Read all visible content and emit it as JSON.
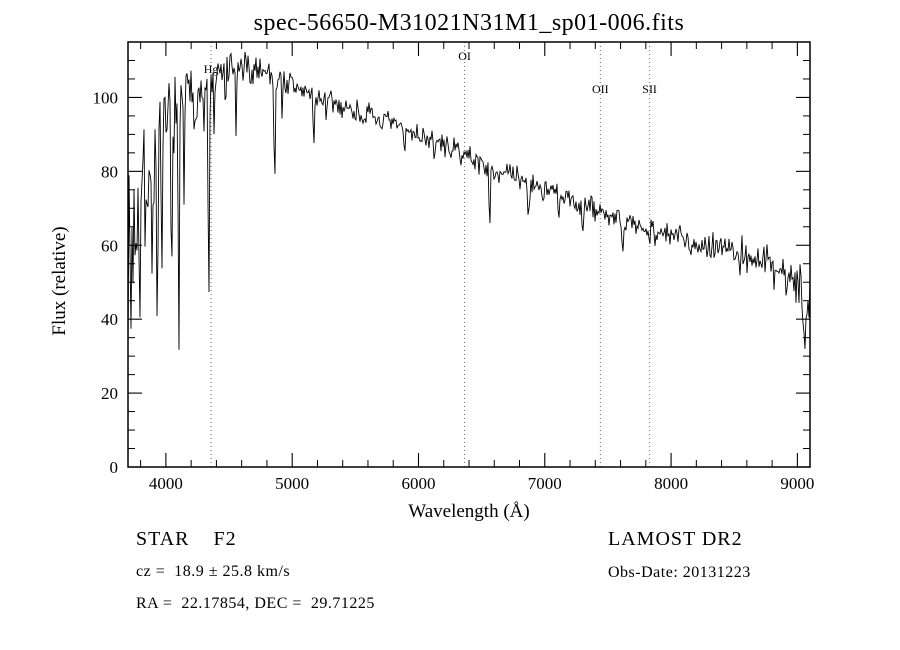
{
  "chart_data": {
    "type": "line",
    "title": "spec-56650-M31021N31M1_sp01-006.fits",
    "xlabel": "Wavelength (Å)",
    "ylabel": "Flux (relative)",
    "xlim": [
      3700,
      9100
    ],
    "ylim": [
      0,
      115
    ],
    "x_ticks": [
      4000,
      5000,
      6000,
      7000,
      8000,
      9000
    ],
    "y_ticks": [
      0,
      20,
      40,
      60,
      80,
      100
    ],
    "x_minor_step": 200,
    "y_minor_step": 5,
    "grid": false,
    "legend": "none",
    "line_color": "#000000",
    "marker_line_color": "#666666",
    "line_markers": [
      {
        "label": "Hg",
        "wavelength": 4358,
        "label_y": 0.073
      },
      {
        "label": "OI",
        "wavelength": 6365,
        "label_y": 0.042
      },
      {
        "label": "OII",
        "wavelength": 7440,
        "label_y": 0.12
      },
      {
        "label": "SII",
        "wavelength": 7830,
        "label_y": 0.12
      }
    ],
    "continuum": [
      [
        3700,
        58
      ],
      [
        3740,
        66
      ],
      [
        3780,
        74
      ],
      [
        3820,
        79
      ],
      [
        3860,
        83
      ],
      [
        3900,
        86
      ],
      [
        3950,
        89
      ],
      [
        4000,
        93
      ],
      [
        4100,
        98
      ],
      [
        4200,
        101
      ],
      [
        4300,
        103
      ],
      [
        4400,
        105
      ],
      [
        4500,
        107
      ],
      [
        4600,
        108
      ],
      [
        4750,
        108
      ],
      [
        4900,
        105
      ],
      [
        5000,
        103
      ],
      [
        5200,
        100
      ],
      [
        5400,
        97.5
      ],
      [
        5600,
        95
      ],
      [
        5800,
        92.5
      ],
      [
        6000,
        90
      ],
      [
        6200,
        87
      ],
      [
        6400,
        84
      ],
      [
        6563,
        81
      ],
      [
        6800,
        78
      ],
      [
        7000,
        75
      ],
      [
        7200,
        72
      ],
      [
        7400,
        69.5
      ],
      [
        7600,
        67
      ],
      [
        7800,
        64.5
      ],
      [
        8000,
        62.5
      ],
      [
        8200,
        61
      ],
      [
        8400,
        60
      ],
      [
        8600,
        57.5
      ],
      [
        8800,
        54.5
      ],
      [
        9000,
        50
      ],
      [
        9100,
        46
      ]
    ],
    "absorption_lines": [
      [
        3726,
        20,
        4
      ],
      [
        3770,
        22,
        4
      ],
      [
        3798,
        28,
        4
      ],
      [
        3835,
        34,
        4
      ],
      [
        3889,
        42,
        5
      ],
      [
        3934,
        52,
        5
      ],
      [
        3970,
        46,
        5
      ],
      [
        4045,
        60,
        4
      ],
      [
        4102,
        74,
        5
      ],
      [
        4144,
        24,
        4
      ],
      [
        4227,
        14,
        3
      ],
      [
        4300,
        16,
        5
      ],
      [
        4340,
        64,
        5
      ],
      [
        4383,
        22,
        3
      ],
      [
        4472,
        12,
        3
      ],
      [
        4555,
        20,
        4
      ],
      [
        4668,
        10,
        4
      ],
      [
        4861,
        31,
        5
      ],
      [
        4920,
        9,
        3
      ],
      [
        5170,
        13,
        5
      ],
      [
        5270,
        8,
        4
      ],
      [
        5890,
        7,
        5
      ],
      [
        6122,
        6,
        4
      ],
      [
        6563,
        19,
        5
      ],
      [
        6870,
        8,
        7
      ],
      [
        7110,
        9,
        4
      ],
      [
        7300,
        7,
        5
      ],
      [
        7620,
        9,
        9
      ],
      [
        8230,
        6,
        6
      ],
      [
        8540,
        6,
        5
      ],
      [
        8662,
        5,
        5
      ],
      [
        9060,
        15,
        12
      ]
    ],
    "noise_profile": [
      [
        3700,
        17
      ],
      [
        3800,
        15
      ],
      [
        3900,
        12
      ],
      [
        3980,
        9
      ],
      [
        4050,
        7
      ],
      [
        4150,
        6
      ],
      [
        4300,
        5
      ],
      [
        4500,
        3.5
      ],
      [
        4800,
        3
      ],
      [
        5200,
        2.6
      ],
      [
        5600,
        2.3
      ],
      [
        6000,
        2.1
      ],
      [
        6500,
        2.1
      ],
      [
        7000,
        2.3
      ],
      [
        7500,
        2.5
      ],
      [
        8000,
        2.6
      ],
      [
        8400,
        3
      ],
      [
        8700,
        3.6
      ],
      [
        8950,
        4.5
      ],
      [
        9100,
        7
      ]
    ],
    "noise_seed": 7
  },
  "annotations": {
    "class_label": "STAR    F2",
    "survey": "LAMOST DR2",
    "cz": "cz =  18.9 ± 25.8 km/s",
    "obs_date": "Obs-Date: 20131223",
    "radec": "RA =  22.17854, DEC =  29.71225"
  }
}
